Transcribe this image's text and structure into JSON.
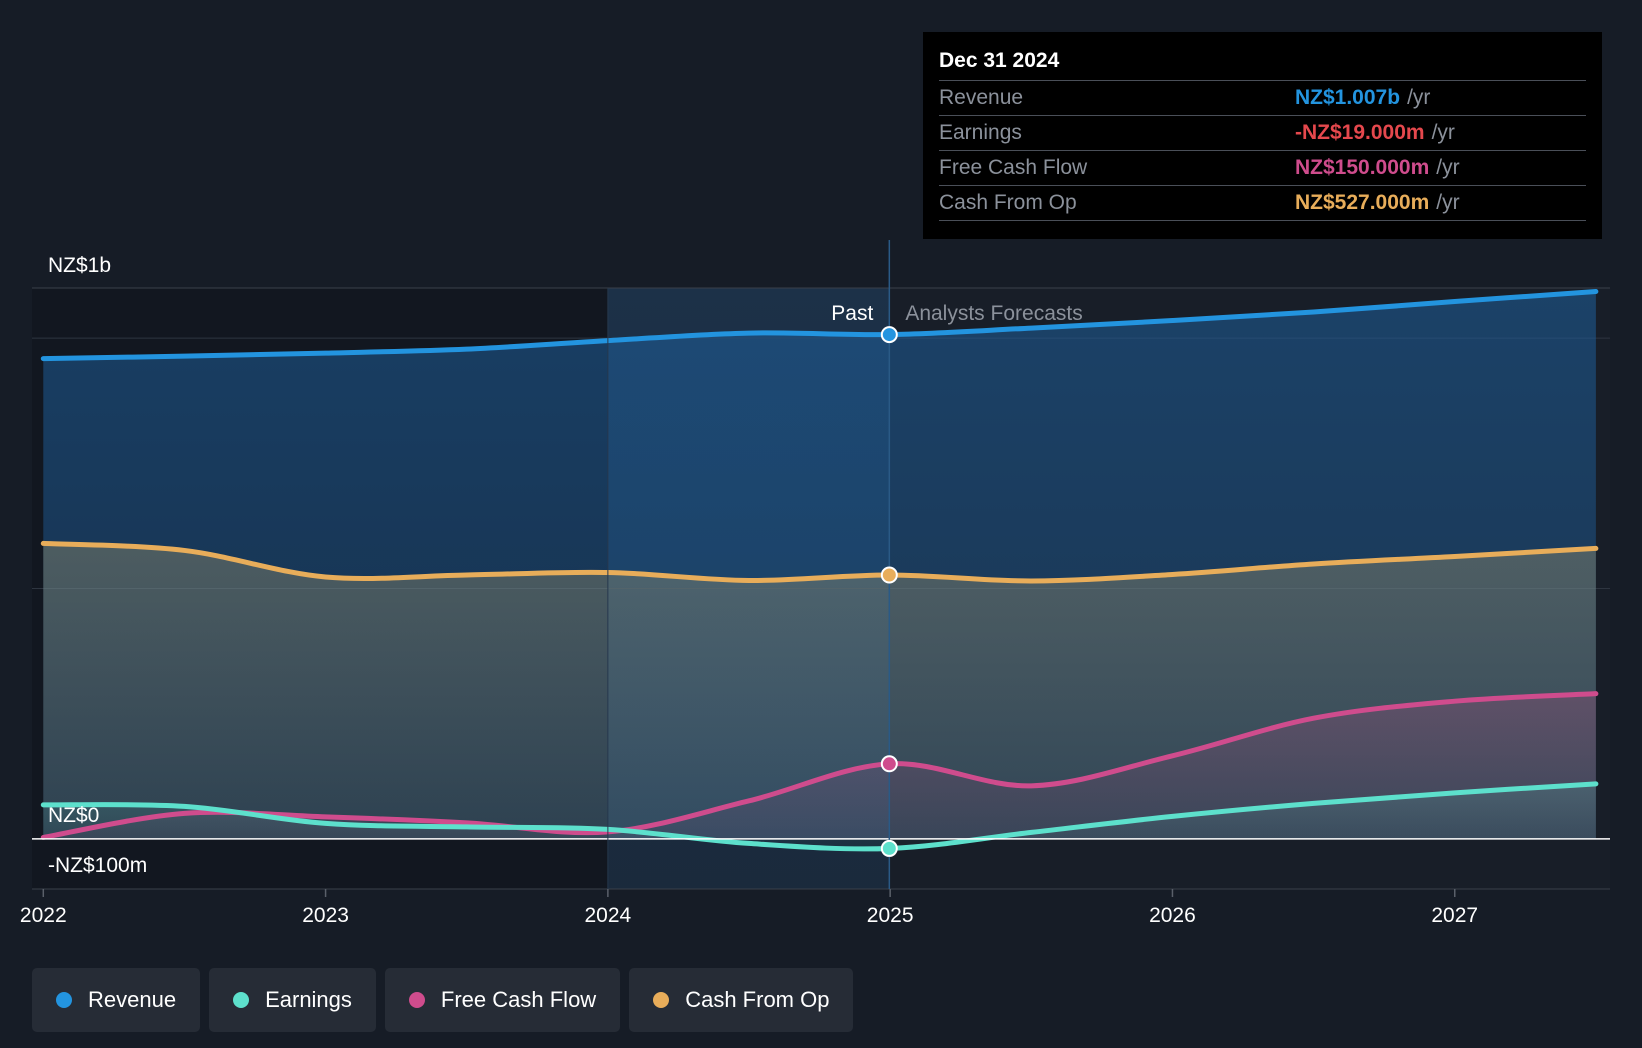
{
  "chart_data": {
    "type": "area",
    "title": "",
    "divider_label_past": "Past",
    "divider_label_forecast": "Analysts Forecasts",
    "divider_x": 2024.997,
    "y_tick_labels": [
      {
        "value": 1100,
        "label": "NZ$1b"
      },
      {
        "value": 0,
        "label": "NZ$0"
      },
      {
        "value": -100,
        "label": "-NZ$100m"
      }
    ],
    "ylim": [
      -100,
      1100
    ],
    "gridlines": [
      1000,
      500
    ],
    "xlim": [
      2021.96,
      2027.55
    ],
    "x_ticks": [
      {
        "value": 2022,
        "label": "2022"
      },
      {
        "value": 2023,
        "label": "2023"
      },
      {
        "value": 2024,
        "label": "2024"
      },
      {
        "value": 2025,
        "label": "2025"
      },
      {
        "value": 2026,
        "label": "2026"
      },
      {
        "value": 2027,
        "label": "2027"
      }
    ],
    "series": [
      {
        "name": "Revenue",
        "color": "#2394df",
        "points": [
          [
            2022,
            959
          ],
          [
            2022.5,
            964
          ],
          [
            2023,
            970
          ],
          [
            2023.5,
            978
          ],
          [
            2024,
            995
          ],
          [
            2024.5,
            1010
          ],
          [
            2025,
            1007
          ],
          [
            2025.5,
            1020
          ],
          [
            2026,
            1035
          ],
          [
            2026.5,
            1052
          ],
          [
            2027,
            1073
          ],
          [
            2027.5,
            1093
          ]
        ],
        "highlight": 1007
      },
      {
        "name": "Cash From Op",
        "color": "#e8ad5a",
        "points": [
          [
            2022,
            590
          ],
          [
            2022.5,
            576
          ],
          [
            2023,
            523
          ],
          [
            2023.5,
            527
          ],
          [
            2024,
            532
          ],
          [
            2024.5,
            516
          ],
          [
            2025,
            527
          ],
          [
            2025.5,
            515
          ],
          [
            2026,
            528
          ],
          [
            2026.5,
            549
          ],
          [
            2027,
            564
          ],
          [
            2027.5,
            580
          ]
        ],
        "highlight": 527
      },
      {
        "name": "Free Cash Flow",
        "color": "#cf4c8d",
        "points": [
          [
            2022,
            3
          ],
          [
            2022.5,
            51
          ],
          [
            2023,
            44
          ],
          [
            2023.5,
            32
          ],
          [
            2024,
            14
          ],
          [
            2024.5,
            76
          ],
          [
            2025,
            150
          ],
          [
            2025.5,
            106
          ],
          [
            2026,
            166
          ],
          [
            2026.5,
            241
          ],
          [
            2027,
            275
          ],
          [
            2027.5,
            290
          ]
        ],
        "highlight": 150
      },
      {
        "name": "Earnings",
        "color": "#5de0cc",
        "points": [
          [
            2022,
            68
          ],
          [
            2022.5,
            65
          ],
          [
            2023,
            31
          ],
          [
            2023.5,
            24
          ],
          [
            2024,
            19
          ],
          [
            2024.5,
            -9
          ],
          [
            2025,
            -19
          ],
          [
            2025.5,
            13
          ],
          [
            2026,
            45
          ],
          [
            2026.5,
            71
          ],
          [
            2027,
            92
          ],
          [
            2027.5,
            110
          ]
        ],
        "highlight": -19
      }
    ]
  },
  "tooltip": {
    "date": "Dec 31 2024",
    "rows": [
      {
        "label": "Revenue",
        "value": "NZ$1.007b",
        "unit": "/yr",
        "color": "#2394df"
      },
      {
        "label": "Earnings",
        "value": "-NZ$19.000m",
        "unit": "/yr",
        "color": "#e5484d"
      },
      {
        "label": "Free Cash Flow",
        "value": "NZ$150.000m",
        "unit": "/yr",
        "color": "#cf4c8d"
      },
      {
        "label": "Cash From Op",
        "value": "NZ$527.000m",
        "unit": "/yr",
        "color": "#e8ad5a"
      }
    ]
  },
  "legend": [
    {
      "label": "Revenue",
      "color": "#2394df"
    },
    {
      "label": "Earnings",
      "color": "#5de0cc"
    },
    {
      "label": "Free Cash Flow",
      "color": "#cf4c8d"
    },
    {
      "label": "Cash From Op",
      "color": "#e8ad5a"
    }
  ]
}
